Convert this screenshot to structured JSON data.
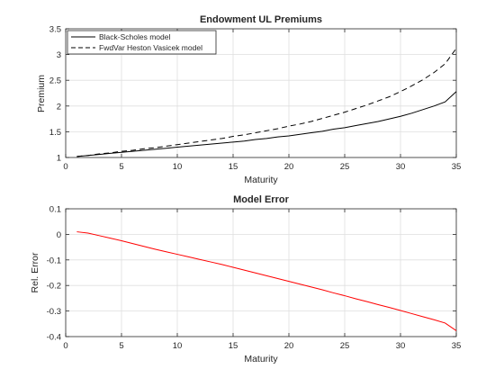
{
  "chart_data": [
    {
      "type": "line",
      "title": "Endowment UL Premiums",
      "xlabel": "Maturity",
      "ylabel": "Premium",
      "xlim": [
        0,
        35
      ],
      "ylim": [
        1,
        3.5
      ],
      "xticks": [
        0,
        5,
        10,
        15,
        20,
        25,
        30,
        35
      ],
      "yticks": [
        1,
        1.5,
        2,
        2.5,
        3,
        3.5
      ],
      "xtick_labels": [
        "0",
        "5",
        "10",
        "15",
        "20",
        "25",
        "30",
        "35"
      ],
      "ytick_labels": [
        "1",
        "1.5",
        "2",
        "2.5",
        "3",
        "3.5"
      ],
      "grid": true,
      "legend_position": "top-left",
      "series": [
        {
          "name": "Black-Scholes model",
          "color": "#000000",
          "style": "solid",
          "x": [
            1,
            2,
            3,
            4,
            5,
            6,
            7,
            8,
            9,
            10,
            11,
            12,
            13,
            14,
            15,
            16,
            17,
            18,
            19,
            20,
            21,
            22,
            23,
            24,
            25,
            26,
            27,
            28,
            29,
            30,
            31,
            32,
            33,
            34,
            35
          ],
          "y": [
            1.02,
            1.04,
            1.06,
            1.08,
            1.1,
            1.12,
            1.14,
            1.16,
            1.18,
            1.2,
            1.22,
            1.24,
            1.26,
            1.28,
            1.3,
            1.32,
            1.35,
            1.37,
            1.4,
            1.42,
            1.45,
            1.48,
            1.51,
            1.55,
            1.58,
            1.62,
            1.66,
            1.7,
            1.75,
            1.8,
            1.86,
            1.93,
            2.0,
            2.08,
            2.28
          ]
        },
        {
          "name": "FwdVar Heston Vasicek model",
          "color": "#000000",
          "style": "dashed",
          "x": [
            1,
            2,
            3,
            4,
            5,
            6,
            7,
            8,
            9,
            10,
            11,
            12,
            13,
            14,
            15,
            16,
            17,
            18,
            19,
            20,
            21,
            22,
            23,
            24,
            25,
            26,
            27,
            28,
            29,
            30,
            31,
            32,
            33,
            34,
            35
          ],
          "y": [
            1.02,
            1.04,
            1.07,
            1.09,
            1.12,
            1.14,
            1.17,
            1.19,
            1.22,
            1.25,
            1.28,
            1.31,
            1.34,
            1.37,
            1.41,
            1.44,
            1.48,
            1.52,
            1.56,
            1.61,
            1.65,
            1.7,
            1.76,
            1.82,
            1.88,
            1.95,
            2.02,
            2.1,
            2.18,
            2.28,
            2.39,
            2.51,
            2.65,
            2.82,
            3.12
          ]
        }
      ]
    },
    {
      "type": "line",
      "title": "Model Error",
      "xlabel": "Maturity",
      "ylabel": "Rel. Error",
      "xlim": [
        0,
        35
      ],
      "ylim": [
        -0.4,
        0.1
      ],
      "xticks": [
        0,
        5,
        10,
        15,
        20,
        25,
        30,
        35
      ],
      "yticks": [
        -0.4,
        -0.3,
        -0.2,
        -0.1,
        0,
        0.1
      ],
      "xtick_labels": [
        "0",
        "5",
        "10",
        "15",
        "20",
        "25",
        "30",
        "35"
      ],
      "ytick_labels": [
        "-0.4",
        "-0.3",
        "-0.2",
        "-0.1",
        "0",
        "0.1"
      ],
      "grid": true,
      "series": [
        {
          "color": "#ff0000",
          "style": "solid",
          "x": [
            1,
            2,
            3,
            4,
            5,
            6,
            7,
            8,
            9,
            10,
            11,
            12,
            13,
            14,
            15,
            16,
            17,
            18,
            19,
            20,
            21,
            22,
            23,
            24,
            25,
            26,
            27,
            28,
            29,
            30,
            31,
            32,
            33,
            34,
            35
          ],
          "y": [
            0.01,
            0.005,
            -0.005,
            -0.015,
            -0.025,
            -0.036,
            -0.047,
            -0.058,
            -0.068,
            -0.078,
            -0.088,
            -0.098,
            -0.108,
            -0.118,
            -0.129,
            -0.14,
            -0.151,
            -0.162,
            -0.173,
            -0.184,
            -0.195,
            -0.206,
            -0.217,
            -0.229,
            -0.24,
            -0.252,
            -0.263,
            -0.275,
            -0.286,
            -0.298,
            -0.31,
            -0.322,
            -0.334,
            -0.347,
            -0.377
          ]
        }
      ]
    }
  ]
}
